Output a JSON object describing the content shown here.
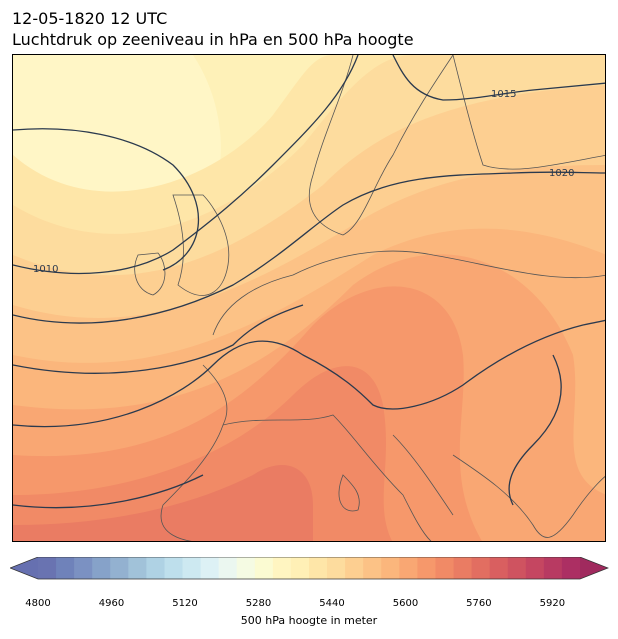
{
  "header": {
    "timestamp": "12-05-1820 12 UTC",
    "title": "Luchtdruk op zeeniveau in hPa en 500 hPa hoogte"
  },
  "map": {
    "fill_variable": "500 hPa hoogte",
    "contour_variable": "Luchtdruk op zeeniveau",
    "isobar_labels": [
      "1015",
      "1020",
      "1010"
    ],
    "isobar_color": "#2b3a4e",
    "land_border_color": "#555555"
  },
  "colorbar": {
    "label": "500 hPa hoogte in meter",
    "min": 4800,
    "max": 5980,
    "step": 40,
    "ticks": [
      "4800",
      "4960",
      "5120",
      "5280",
      "5440",
      "5600",
      "5760",
      "5920"
    ],
    "colors": [
      "#6973b1",
      "#6f82ba",
      "#7b91c2",
      "#86a2c9",
      "#93b1d0",
      "#a1c2d9",
      "#afd2e4",
      "#bedfec",
      "#cde9f1",
      "#ddf1f5",
      "#ebf7f0",
      "#f5fbe3",
      "#fbfbd2",
      "#fff5c1",
      "#fff0b6",
      "#fee6a8",
      "#fddc9e",
      "#fdcf91",
      "#fcc286",
      "#fbb67c",
      "#f9a773",
      "#f6986b",
      "#f18a66",
      "#ea7c63",
      "#e26e61",
      "#d95f60",
      "#cf5360",
      "#c54661",
      "#b83a62",
      "#ac2f63"
    ],
    "under_color": "#6670b0",
    "over_color": "#a02a5e"
  }
}
